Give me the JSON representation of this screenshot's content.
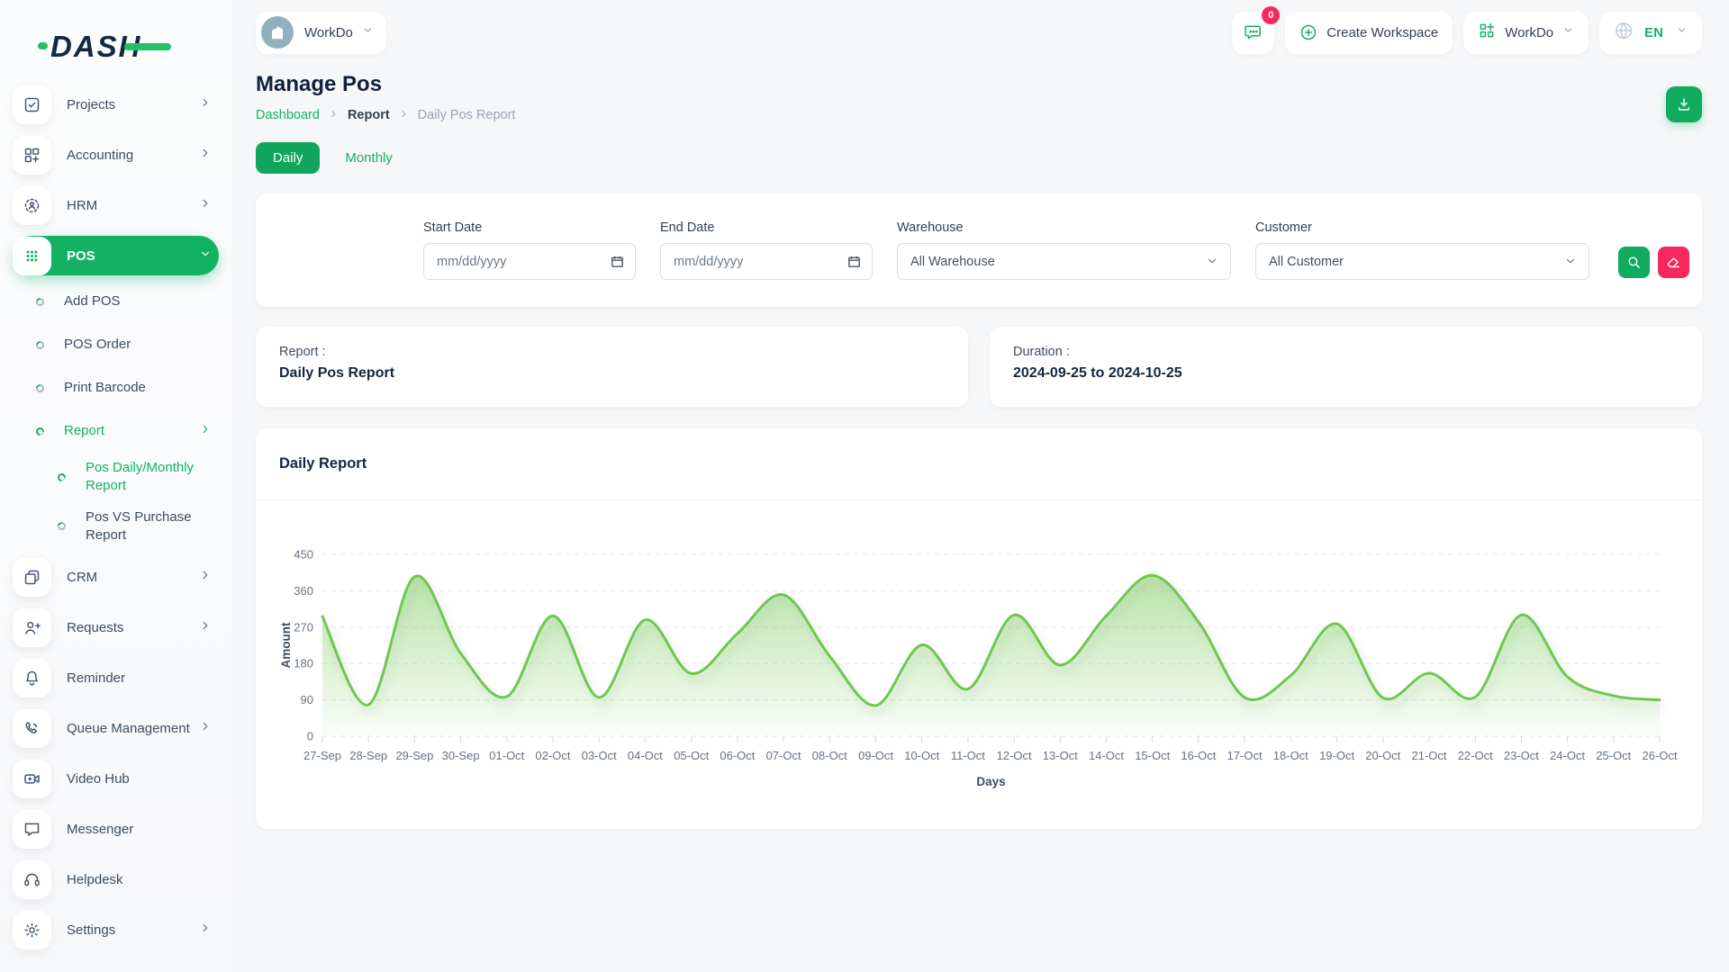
{
  "brand": {
    "logo_text": "DASH"
  },
  "topbar": {
    "workspace_switcher_label": "WorkDo",
    "messages_badge": "0",
    "create_workspace_label": "Create Workspace",
    "company_menu_label": "WorkDo",
    "language": "EN"
  },
  "sidebar": {
    "items": [
      {
        "label": "Projects",
        "icon": "checkbox-icon",
        "chevron": true
      },
      {
        "label": "Accounting",
        "icon": "accounting-icon",
        "chevron": true
      },
      {
        "label": "HRM",
        "icon": "hrm-icon",
        "chevron": true
      },
      {
        "label": "POS",
        "icon": "pos-grid-icon",
        "chevron": true,
        "active": true,
        "expanded": true,
        "children": [
          {
            "label": "Add POS"
          },
          {
            "label": "POS Order"
          },
          {
            "label": "Print Barcode"
          },
          {
            "label": "Report",
            "active": true,
            "chevron": true,
            "children": [
              {
                "label": "Pos Daily/Monthly Report",
                "active": true
              },
              {
                "label": "Pos VS Purchase Report"
              }
            ]
          }
        ]
      },
      {
        "label": "CRM",
        "icon": "crm-icon",
        "chevron": true
      },
      {
        "label": "Requests",
        "icon": "user-plus-icon",
        "chevron": true
      },
      {
        "label": "Reminder",
        "icon": "bell-icon",
        "chevron": false
      },
      {
        "label": "Queue Management",
        "icon": "phone-icon",
        "chevron": true
      },
      {
        "label": "Video Hub",
        "icon": "video-icon",
        "chevron": false
      },
      {
        "label": "Messenger",
        "icon": "chat-icon",
        "chevron": false
      },
      {
        "label": "Helpdesk",
        "icon": "headset-icon",
        "chevron": false
      },
      {
        "label": "Settings",
        "icon": "gear-icon",
        "chevron": true
      }
    ]
  },
  "page": {
    "title": "Manage Pos",
    "breadcrumb": [
      "Dashboard",
      "Report",
      "Daily Pos Report"
    ],
    "tabs": {
      "daily": "Daily",
      "monthly": "Monthly"
    },
    "filters": {
      "start_date": {
        "label": "Start Date",
        "placeholder": "mm/dd/yyyy"
      },
      "end_date": {
        "label": "End Date",
        "placeholder": "mm/dd/yyyy"
      },
      "warehouse": {
        "label": "Warehouse",
        "value": "All Warehouse"
      },
      "customer": {
        "label": "Customer",
        "value": "All Customer"
      }
    },
    "summary": {
      "report_label": "Report :",
      "report_value": "Daily Pos Report",
      "duration_label": "Duration :",
      "duration_value": "2024-09-25 to 2024-10-25"
    }
  },
  "chart_data": {
    "type": "area",
    "title": "Daily Report",
    "xlabel": "Days",
    "ylabel": "Amount",
    "ylim": [
      0,
      450
    ],
    "yticks": [
      0,
      90,
      180,
      270,
      360,
      450
    ],
    "grid": "dashed-horizontal",
    "legend": "none",
    "categories": [
      "27-Sep",
      "28-Sep",
      "29-Sep",
      "30-Sep",
      "01-Oct",
      "02-Oct",
      "03-Oct",
      "04-Oct",
      "05-Oct",
      "06-Oct",
      "07-Oct",
      "08-Oct",
      "09-Oct",
      "10-Oct",
      "11-Oct",
      "12-Oct",
      "13-Oct",
      "14-Oct",
      "15-Oct",
      "16-Oct",
      "17-Oct",
      "18-Oct",
      "19-Oct",
      "20-Oct",
      "21-Oct",
      "22-Oct",
      "23-Oct",
      "24-Oct",
      "25-Oct",
      "26-Oct"
    ],
    "series": [
      {
        "name": "Amount",
        "values": [
          296,
          78,
          395,
          205,
          98,
          298,
          96,
          288,
          155,
          254,
          350,
          198,
          76,
          226,
          117,
          300,
          176,
          298,
          398,
          283,
          96,
          150,
          278,
          95,
          156,
          97,
          300,
          147,
          100,
          90
        ]
      }
    ],
    "line_color": "#6ec84f",
    "fill_top_color": "rgba(126,204,98,0.55)",
    "fill_bottom_color": "rgba(126,204,98,0.04)",
    "tick_color": "#667085",
    "axis_label_color": "#3f4c5c"
  },
  "colors": {
    "primary_green": "#13b263",
    "danger_pink": "#f8285f",
    "dark_navy": "#10213c"
  }
}
